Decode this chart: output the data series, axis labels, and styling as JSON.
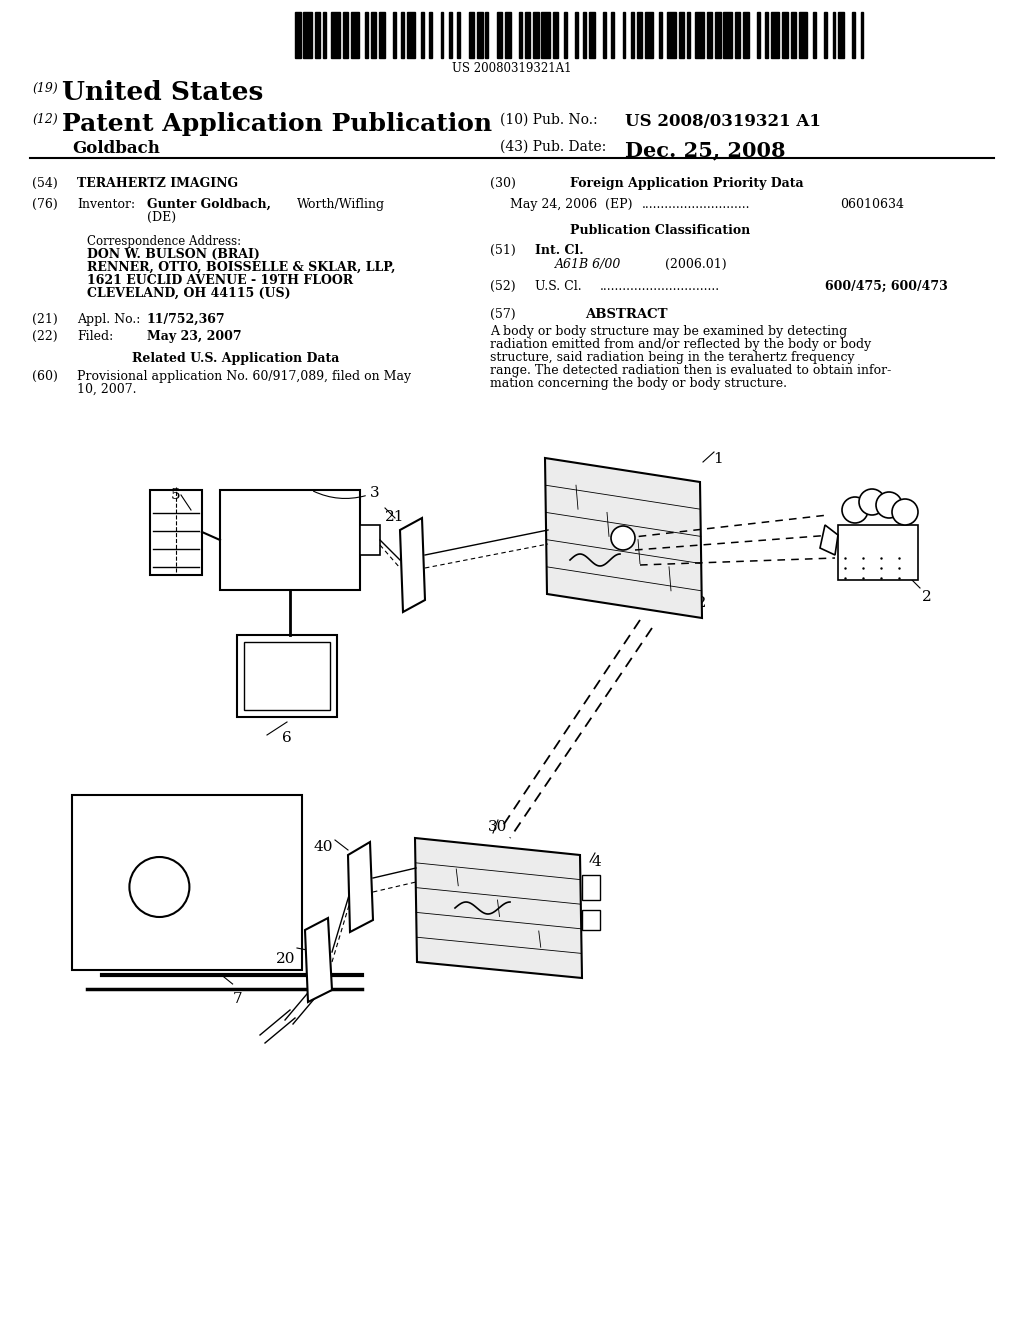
{
  "bg_color": "#ffffff",
  "barcode_text": "US 20080319321A1",
  "title_country": "United States",
  "title_type": "Patent Application Publication",
  "pub_no_label": "(10) Pub. No.:",
  "pub_no_value": "US 2008/0319321 A1",
  "pub_date_label": "(43) Pub. Date:",
  "pub_date_value": "Dec. 25, 2008",
  "applicant_label": "Goldbach",
  "num19": "(19)",
  "num12": "(12)",
  "field54_label": "(54)",
  "field54_value": "TERAHERTZ IMAGING",
  "field76_label": "(76)",
  "field76_name": "Inventor:",
  "correspondence_label": "Correspondence Address:",
  "correspondence_lines": [
    "DON W. BULSON (BRAI)",
    "RENNER, OTTO, BOISSELLE & SKLAR, LLP,",
    "1621 EUCLID AVENUE - 19TH FLOOR",
    "CLEVELAND, OH 44115 (US)"
  ],
  "field21_label": "(21)",
  "field21_name": "Appl. No.:",
  "field21_value": "11/752,367",
  "field22_label": "(22)",
  "field22_name": "Filed:",
  "field22_value": "May 23, 2007",
  "related_title": "Related U.S. Application Data",
  "field60_label": "(60)",
  "field60_line1": "Provisional application No. 60/917,089, filed on May",
  "field60_line2": "10, 2007.",
  "field30_label": "(30)",
  "field30_title": "Foreign Application Priority Data",
  "field30_date": "May 24, 2006",
  "field30_country": "(EP)",
  "field30_dots": "............................",
  "field30_number": "06010634",
  "pub_class_title": "Publication Classification",
  "field51_label": "(51)",
  "field51_name": "Int. Cl.",
  "field51_class": "A61B 6/00",
  "field51_year": "(2006.01)",
  "field52_label": "(52)",
  "field52_name": "U.S. Cl.",
  "field52_dots": "...............................",
  "field52_value": "600/475; 600/473",
  "field57_label": "(57)",
  "field57_title": "ABSTRACT",
  "abstract_lines": [
    "A body or body structure may be examined by detecting",
    "radiation emitted from and/or reflected by the body or body",
    "structure, said radiation being in the terahertz frequency",
    "range. The detected radiation then is evaluated to obtain infor-",
    "mation concerning the body or body structure."
  ]
}
